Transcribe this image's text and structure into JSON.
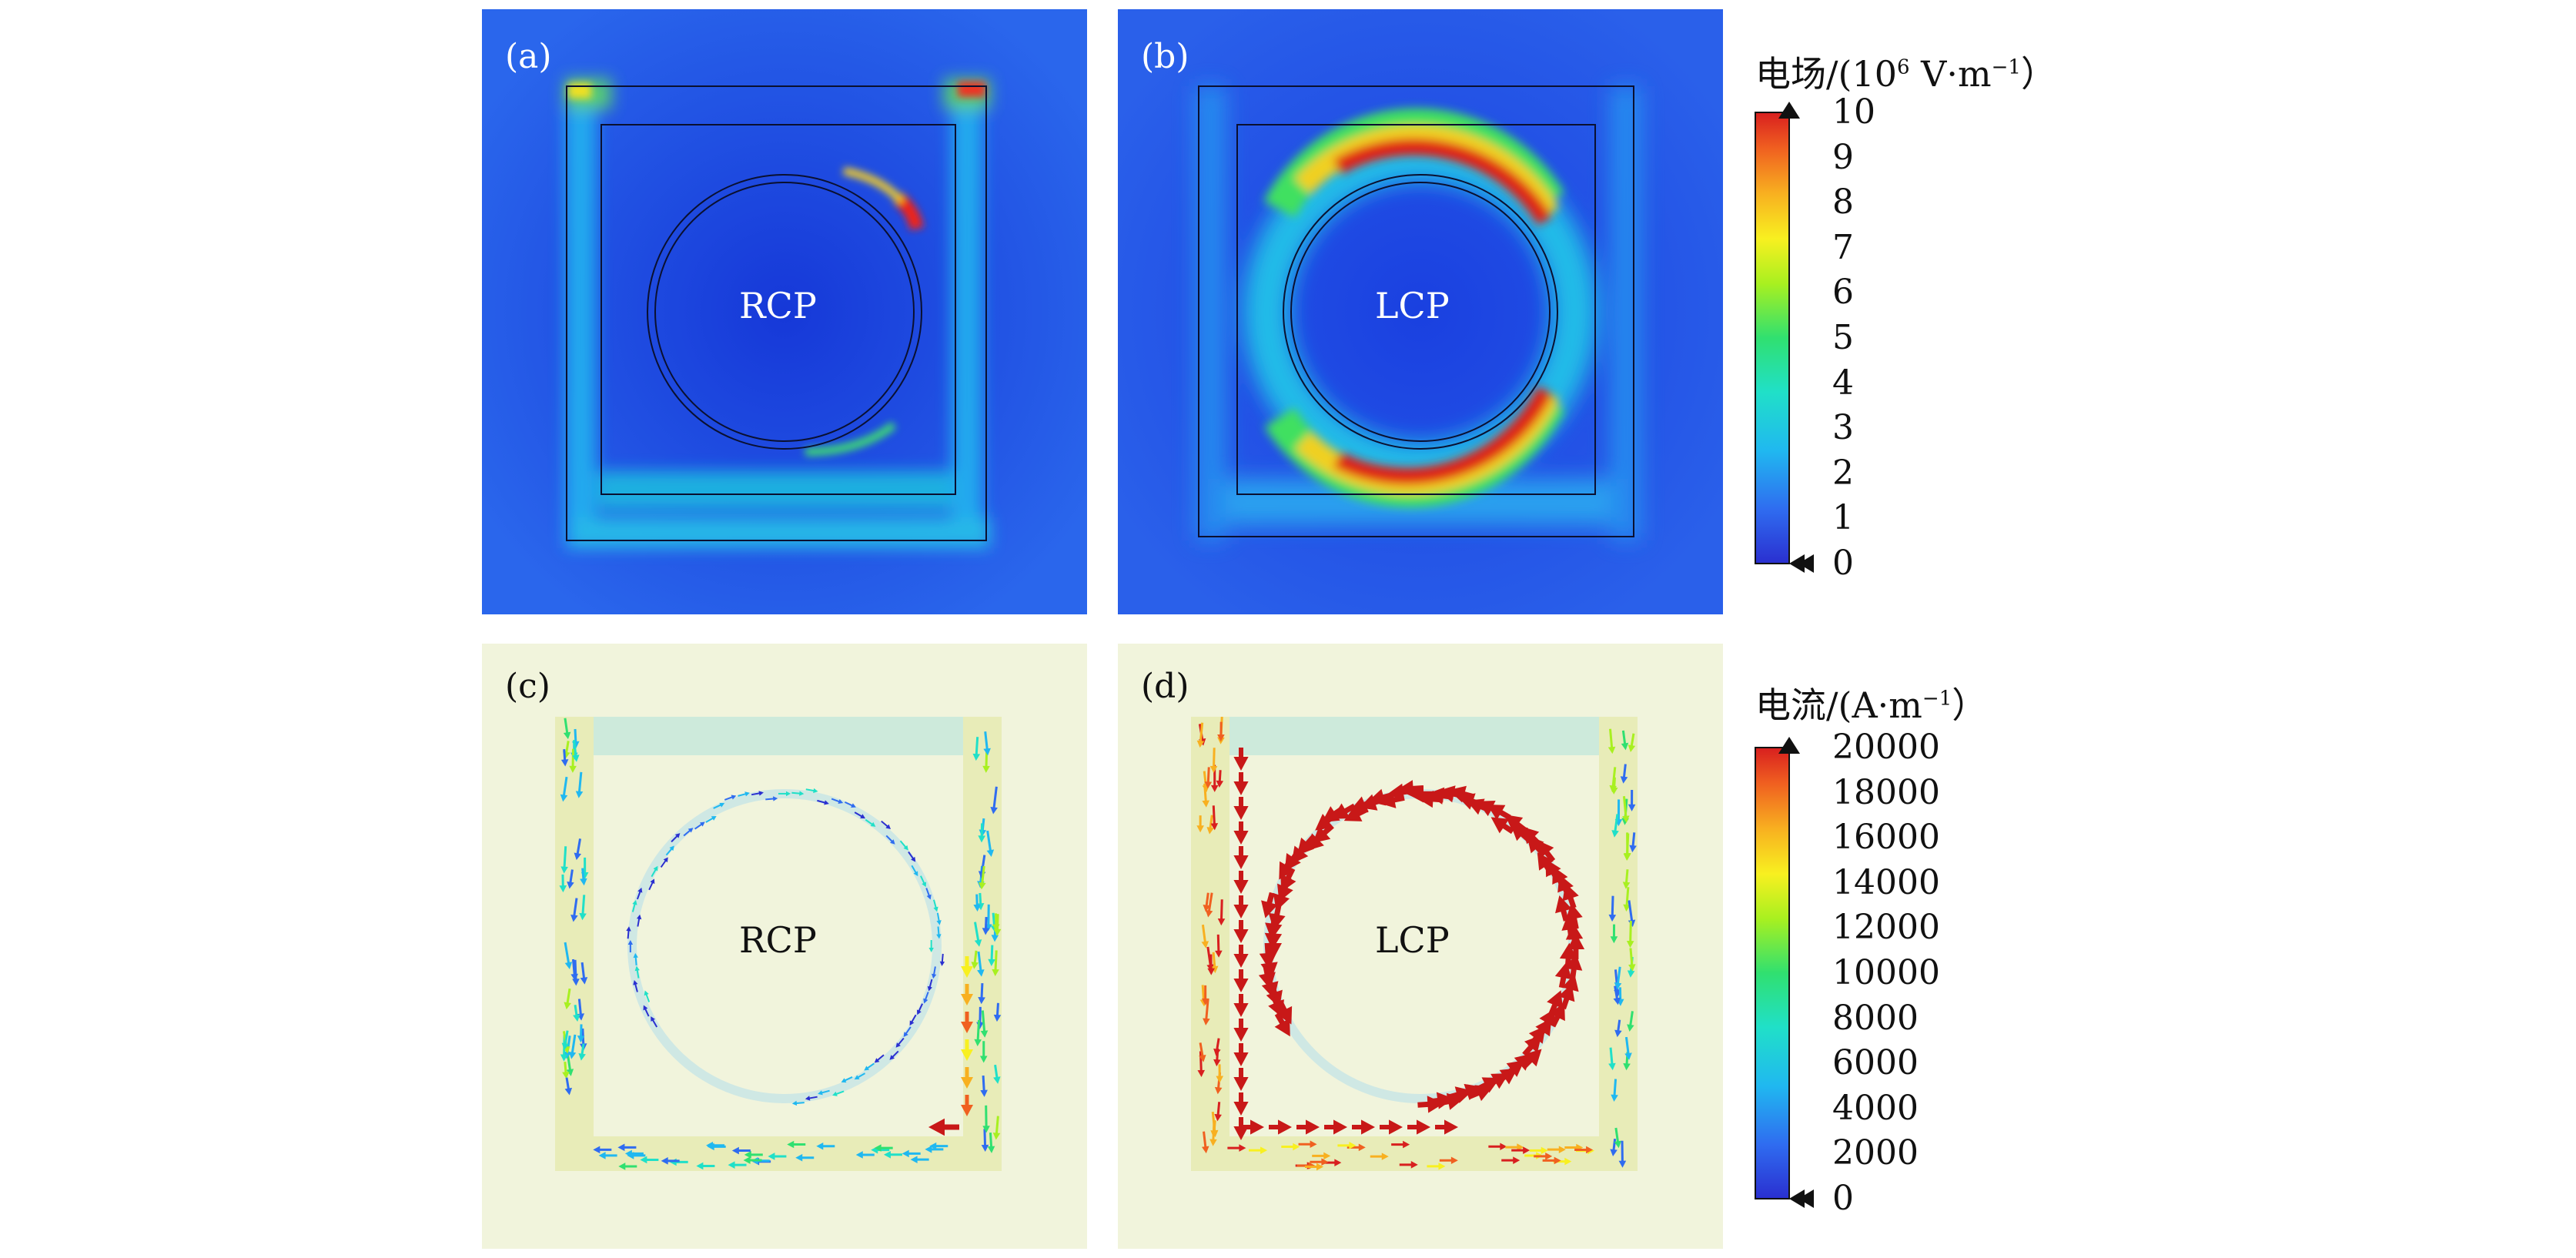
{
  "panels": [
    {
      "tag": "(a)",
      "pol": "RCP"
    },
    {
      "tag": "(b)",
      "pol": "LCP"
    },
    {
      "tag": "(c)",
      "pol": "RCP"
    },
    {
      "tag": "(d)",
      "pol": "LCP"
    }
  ],
  "efield_bar": {
    "title_prefix": "电场/(10",
    "title_exp": "6",
    "title_mid": " V·m",
    "title_exp2": "−1",
    "title_suffix": "）",
    "ticks": [
      "10",
      "9",
      "8",
      "7",
      "6",
      "5",
      "4",
      "3",
      "2",
      "1",
      "0"
    ]
  },
  "current_bar": {
    "title_prefix": "电流/(A·m",
    "title_exp": "−1",
    "title_suffix": "）",
    "ticks": [
      "20000",
      "18000",
      "16000",
      "14000",
      "12000",
      "10000",
      "8000",
      "6000",
      "4000",
      "2000",
      "0"
    ]
  },
  "colors": {
    "field_bg": "#1a3de0",
    "current_bg": "#f1f4dc",
    "colormap": [
      "#2a2fd0",
      "#2f6cf0",
      "#20b8f0",
      "#20e0c8",
      "#30e070",
      "#a8f020",
      "#f8f020",
      "#f8b020",
      "#f06020",
      "#d81f1f"
    ]
  }
}
